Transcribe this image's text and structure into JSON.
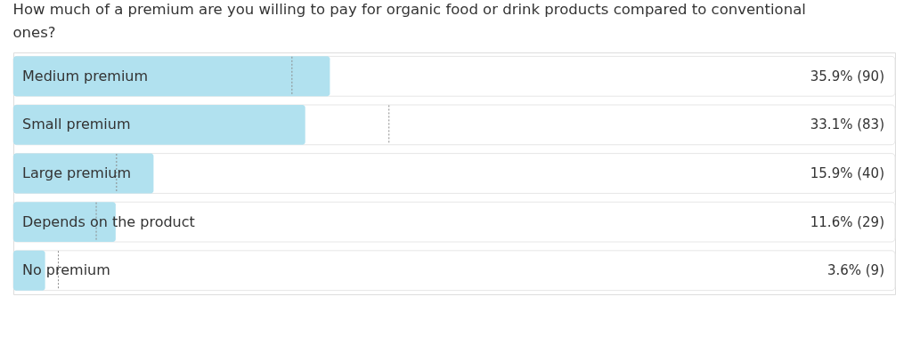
{
  "chart_data": {
    "type": "bar",
    "orientation": "horizontal",
    "title": "How much of a premium are you willing to pay for organic food or drink products compared to conventional ones?",
    "categories": [
      "Medium premium",
      "Small premium",
      "Large premium",
      "Depends on the product",
      "No premium"
    ],
    "series": [
      {
        "color": "#b1e1ef",
        "values": [
          35.9,
          33.1,
          15.9,
          11.6,
          3.6
        ],
        "value_labels": [
          "35.9% (90)",
          "33.1% (83)",
          "15.9% (40)",
          "11.6% (29)",
          "3.6% (9)"
        ]
      }
    ],
    "ref_lines": [
      {
        "axis": "x",
        "value": 31.6,
        "color": "#8a8a8a",
        "line_style": "dotted"
      },
      {
        "axis": "x",
        "value": 42.6,
        "color": "#8a8a8a",
        "line_style": "dotted"
      },
      {
        "axis": "x",
        "value": 11.7,
        "color": "#8a8a8a",
        "line_style": "dotted"
      },
      {
        "axis": "x",
        "value": 9.4,
        "color": "#8a8a8a",
        "line_style": "dotted"
      },
      {
        "axis": "x",
        "value": 5.1,
        "color": "#8a8a8a",
        "line_style": "dotted"
      }
    ],
    "xlim": [
      0,
      100
    ],
    "tick_labels": false,
    "grid": false
  }
}
